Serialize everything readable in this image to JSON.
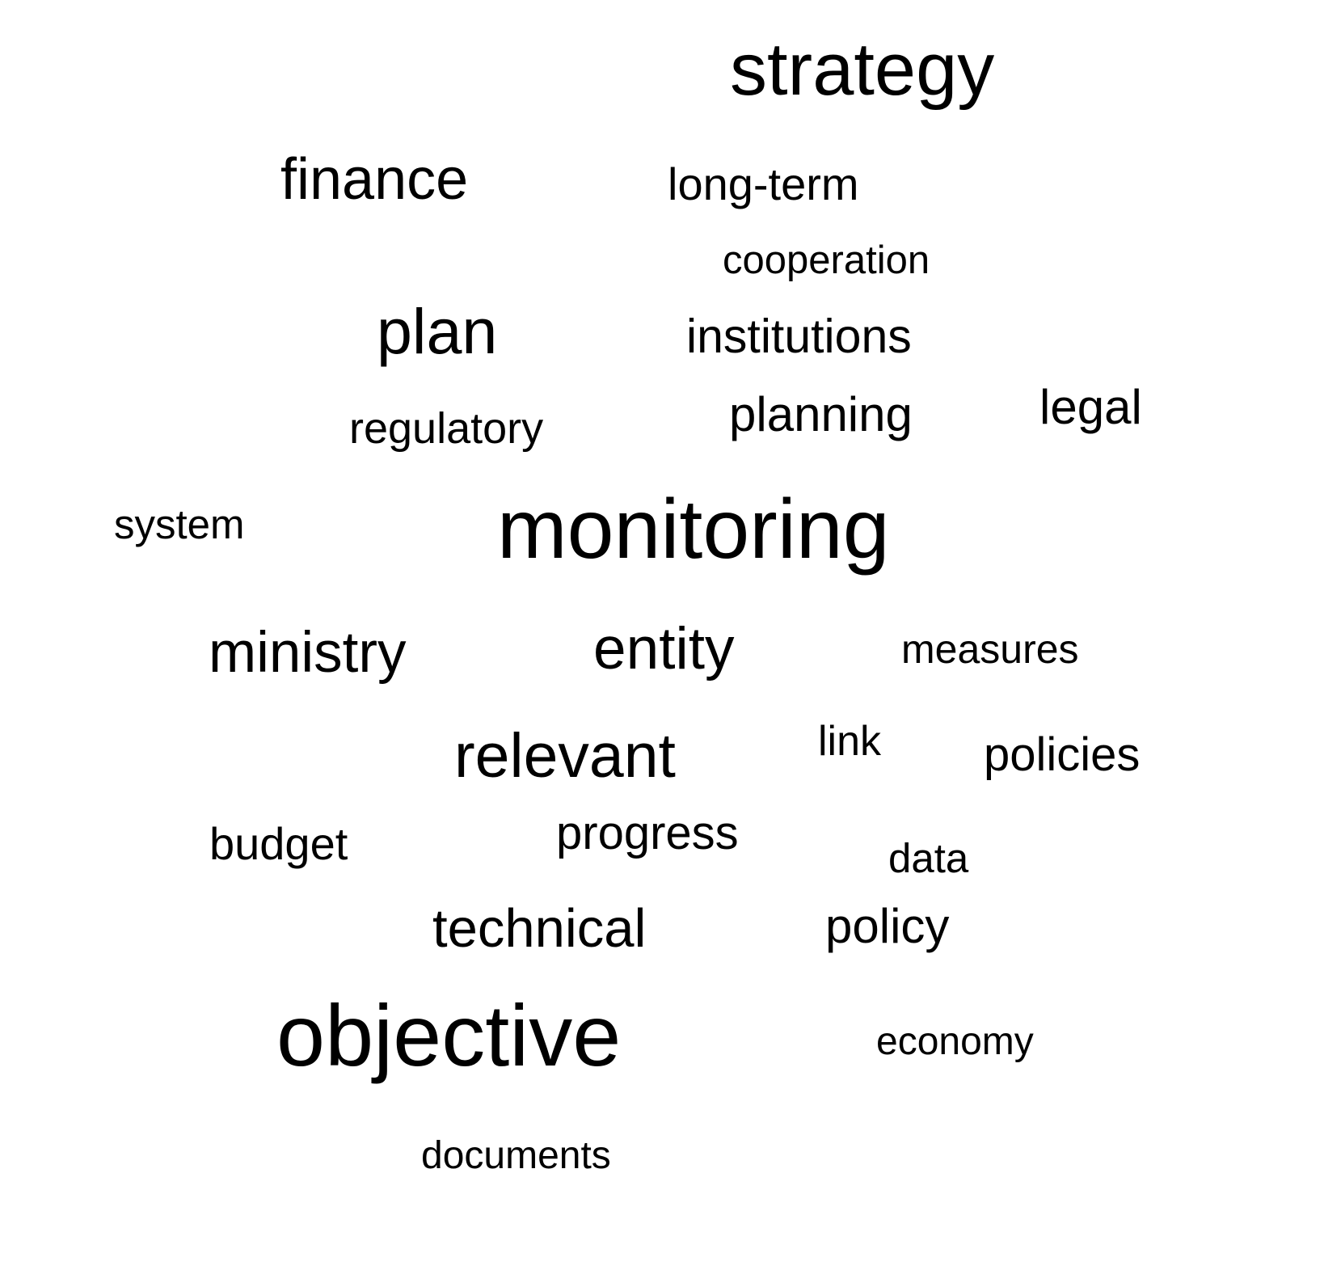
{
  "word_cloud": {
    "background_color": "#ffffff",
    "text_color": "#000000",
    "words": {
      "strategy": "strategy",
      "finance": "finance",
      "long_term": "long-term",
      "cooperation": "cooperation",
      "plan": "plan",
      "institutions": "institutions",
      "regulatory": "regulatory",
      "planning": "planning",
      "legal": "legal",
      "system": "system",
      "monitoring": "monitoring",
      "ministry": "ministry",
      "entity": "entity",
      "measures": "measures",
      "relevant": "relevant",
      "link": "link",
      "policies": "policies",
      "budget": "budget",
      "progress": "progress",
      "data": "data",
      "technical": "technical",
      "policy": "policy",
      "objective": "objective",
      "economy": "economy",
      "documents": "documents"
    }
  }
}
